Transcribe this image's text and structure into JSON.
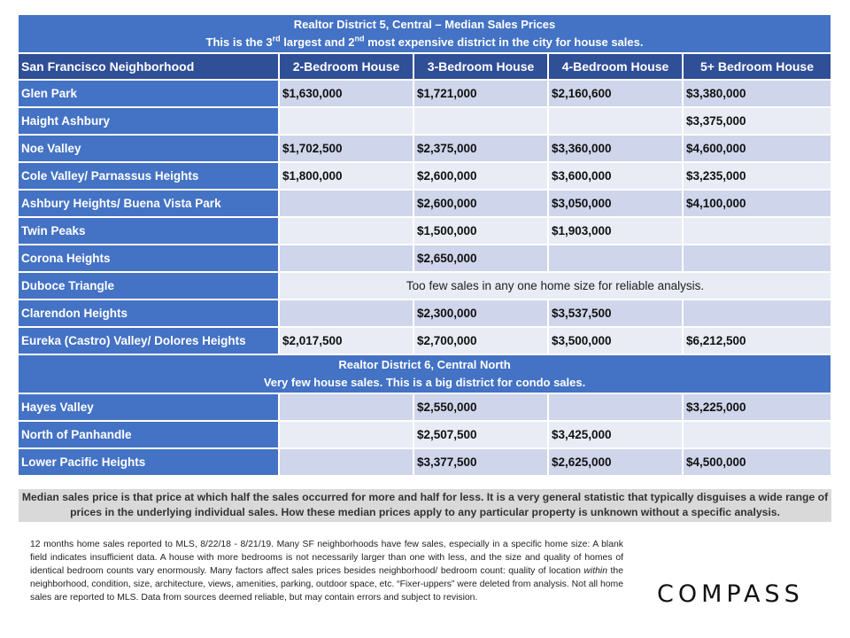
{
  "district5": {
    "title": "Realtor District 5, Central – Median Sales Prices",
    "subtitle_pre": "This is the 3",
    "subtitle_sup1": "rd",
    "subtitle_mid": " largest and 2",
    "subtitle_sup2": "nd",
    "subtitle_post": " most expensive district in the city for house sales."
  },
  "headers": [
    "San Francisco Neighborhood",
    "2-Bedroom House",
    "3-Bedroom House",
    "4-Bedroom House",
    "5+ Bedroom House"
  ],
  "rows_d5": [
    {
      "name": "Glen Park",
      "values": [
        "$1,630,000",
        "$1,721,000",
        "$2,160,600",
        "$3,380,000"
      ]
    },
    {
      "name": "Haight Ashbury",
      "values": [
        "",
        "",
        "",
        "$3,375,000"
      ]
    },
    {
      "name": "Noe Valley",
      "values": [
        "$1,702,500",
        "$2,375,000",
        "$3,360,000",
        "$4,600,000"
      ]
    },
    {
      "name": "Cole Valley/ Parnassus Heights",
      "values": [
        "$1,800,000",
        "$2,600,000",
        "$3,600,000",
        "$3,235,000"
      ]
    },
    {
      "name": "Ashbury Heights/ Buena Vista Park",
      "values": [
        "",
        "$2,600,000",
        "$3,050,000",
        "$4,100,000"
      ]
    },
    {
      "name": "Twin Peaks",
      "values": [
        "",
        "$1,500,000",
        "$1,903,000",
        ""
      ]
    },
    {
      "name": "Corona Heights",
      "values": [
        "",
        "$2,650,000",
        "",
        ""
      ]
    },
    {
      "name": "Duboce Triangle",
      "note": "Too few sales in any one home size for reliable analysis."
    },
    {
      "name": "Clarendon Heights",
      "values": [
        "",
        "$2,300,000",
        "$3,537,500",
        ""
      ]
    },
    {
      "name": "Eureka (Castro) Valley/ Dolores Heights",
      "values": [
        "$2,017,500",
        "$2,700,000",
        "$3,500,000",
        "$6,212,500"
      ]
    }
  ],
  "district6": {
    "title": "Realtor District 6, Central North",
    "subtitle": "Very few house sales. This is a big district for condo sales."
  },
  "rows_d6": [
    {
      "name": "Hayes Valley",
      "values": [
        "",
        "$2,550,000",
        "",
        "$3,225,000"
      ]
    },
    {
      "name": "North of Panhandle",
      "values": [
        "",
        "$2,507,500",
        "$3,425,000",
        ""
      ]
    },
    {
      "name": "Lower Pacific Heights",
      "values": [
        "",
        "$3,377,500",
        "$2,625,000",
        "$4,500,000"
      ]
    }
  ],
  "median_note": "Median sales price is that price at which half the sales occurred for more and half for less. It is a very general statistic that typically disguises a wide range of prices in the underlying individual sales. How these median prices apply to any particular property is unknown without a specific analysis.",
  "footnote": {
    "part1": "12 months home sales reported to MLS, 8/22/18 - 8/21/19. Many SF neighborhoods have few sales, especially in a specific home size: A blank field indicates insufficient data. A house with more bedrooms is not necessarily larger than one with less, and the size and quality of homes of identical bedroom counts vary enormously. Many factors affect sales prices besides neighborhood/ bedroom count: quality of location ",
    "emphasis": "within",
    "part2": " the neighborhood, condition, size, architecture, views, amenities, parking, outdoor space, etc. “Fixer-uppers” were deleted from analysis. Not all home sales are reported to MLS. Data from sources deemed reliable, but may contain errors and subject to revision."
  },
  "logo": "COMPASS"
}
